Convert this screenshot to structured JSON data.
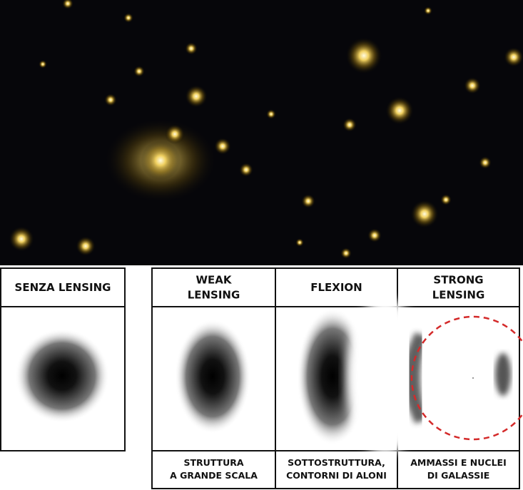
{
  "panels": [
    {
      "title": [
        "SENZA LENSING"
      ]
    },
    {
      "title": [
        "WEAK",
        "LENSING"
      ],
      "caption": [
        "STRUTTURA",
        "A GRANDE SCALA"
      ]
    },
    {
      "title": [
        "FLEXION"
      ],
      "caption": [
        "SOTTOSTRUTTURA,",
        "CONTORNI DI ALONI"
      ]
    },
    {
      "title": [
        "STRONG",
        "LENSING"
      ],
      "caption": [
        "AMMASSI E NUCLEI",
        "DI GALASSIE"
      ]
    }
  ]
}
